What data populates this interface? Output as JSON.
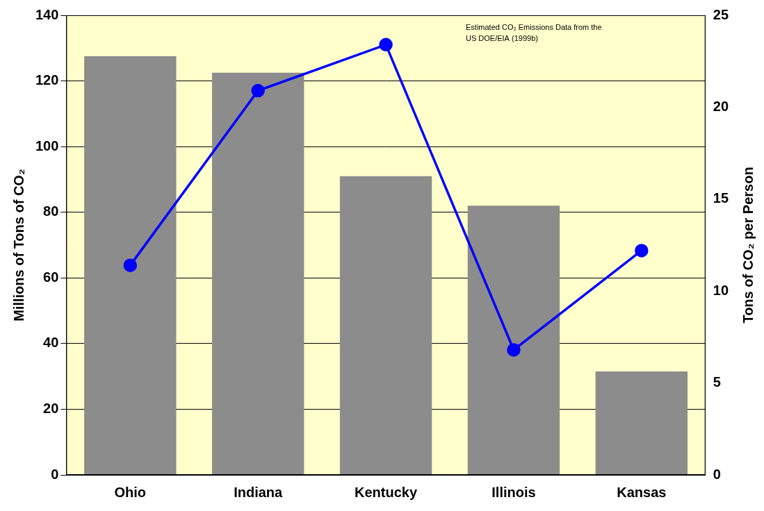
{
  "chart_data": {
    "type": "bar",
    "categories": [
      "Ohio",
      "Indiana",
      "Kentucky",
      "Illinois",
      "Kansas"
    ],
    "series": [
      {
        "type": "bar",
        "color": "#8c8c8c",
        "values": [
          127.5,
          122.5,
          91,
          82,
          31.5
        ]
      },
      {
        "type": "line",
        "axis": "y2",
        "color": "#0000ff",
        "marker": "circle",
        "values": [
          11.4,
          20.9,
          23.4,
          6.8,
          12.2
        ]
      }
    ],
    "ylabel": "Millions of Tons of CO₂",
    "y2label": "Tons of CO₂ per Person",
    "ylim": [
      0,
      140
    ],
    "yticks": [
      0,
      20,
      40,
      60,
      80,
      100,
      120,
      140
    ],
    "y2lim": [
      0,
      25
    ],
    "y2ticks": [
      0,
      5,
      10,
      15,
      20,
      25
    ],
    "grid": true,
    "annotation": [
      "Estimated CO₂ Emissions Data from the",
      "US DOE/EIA (1999b)"
    ]
  }
}
